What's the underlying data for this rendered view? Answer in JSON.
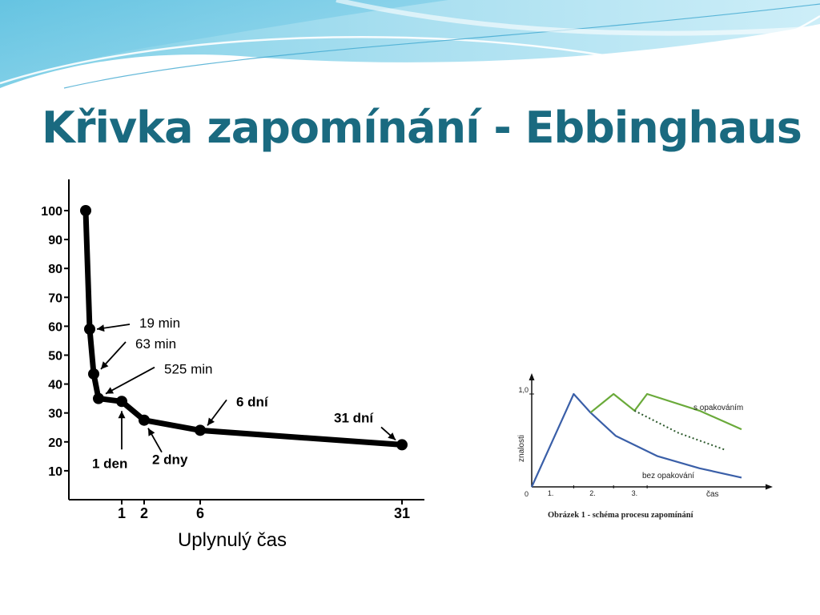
{
  "slide": {
    "title": "Křivka zapomínání - Ebbinghaus"
  },
  "chart_data": [
    {
      "type": "line",
      "xlabel": "Uplynulý čas",
      "ylabel": "",
      "ylim": [
        0,
        100
      ],
      "y_ticks": [
        "10",
        "20",
        "30",
        "40",
        "50",
        "60",
        "70",
        "80",
        "90",
        "100"
      ],
      "x_ticks": [
        "1",
        "2",
        "6",
        "31"
      ],
      "grid": false,
      "series": [
        {
          "points": [
            {
              "x": 0,
              "y": 100
            },
            {
              "x": 0.013,
              "y": 59
            },
            {
              "x": 0.044,
              "y": 43.5
            },
            {
              "x": 0.365,
              "y": 35
            },
            {
              "x": 1,
              "y": 34
            },
            {
              "x": 2,
              "y": 27.5
            },
            {
              "x": 6,
              "y": 24
            },
            {
              "x": 31,
              "y": 19
            }
          ]
        }
      ],
      "annotations": [
        {
          "text": "19 min",
          "x": 0.013,
          "y": 59
        },
        {
          "text": "63 min",
          "x": 0.044,
          "y": 43.5
        },
        {
          "text": "525 min",
          "x": 0.365,
          "y": 35
        },
        {
          "text": "1 den",
          "x": 1,
          "y": 34
        },
        {
          "text": "2 dny",
          "x": 2,
          "y": 27.5
        },
        {
          "text": "6 dní",
          "x": 6,
          "y": 24
        },
        {
          "text": "31 dní",
          "x": 31,
          "y": 19
        }
      ]
    },
    {
      "type": "line",
      "ylabel": "znalosti",
      "xlabel": "čas",
      "ylim": [
        0,
        1.0
      ],
      "y_ticks": [
        "0",
        "1,0"
      ],
      "x_ticks": [
        "1.",
        "2.",
        "3."
      ],
      "caption": "Obrázek 1 - schéma procesu zapomínání",
      "series": [
        {
          "name": "bez opakování",
          "color": "#3a5fa8",
          "points": [
            [
              0,
              0
            ],
            [
              1.0,
              1.0
            ],
            [
              1.4,
              0.8
            ],
            [
              2,
              0.55
            ],
            [
              3,
              0.33
            ],
            [
              4,
              0.2
            ],
            [
              5,
              0.1
            ]
          ]
        },
        {
          "name": "s opakováním",
          "color": "#6aaa3a",
          "points": [
            [
              1.4,
              0.8
            ],
            [
              1.95,
              1.0
            ],
            [
              2.45,
              0.82
            ],
            [
              2.75,
              1.0
            ],
            [
              4,
              0.82
            ],
            [
              5,
              0.62
            ]
          ]
        },
        {
          "name": "",
          "color": "#2d5a2d",
          "style": "dotted",
          "points": [
            [
              2.45,
              0.82
            ],
            [
              3.5,
              0.58
            ],
            [
              4.6,
              0.4
            ]
          ]
        }
      ]
    }
  ]
}
